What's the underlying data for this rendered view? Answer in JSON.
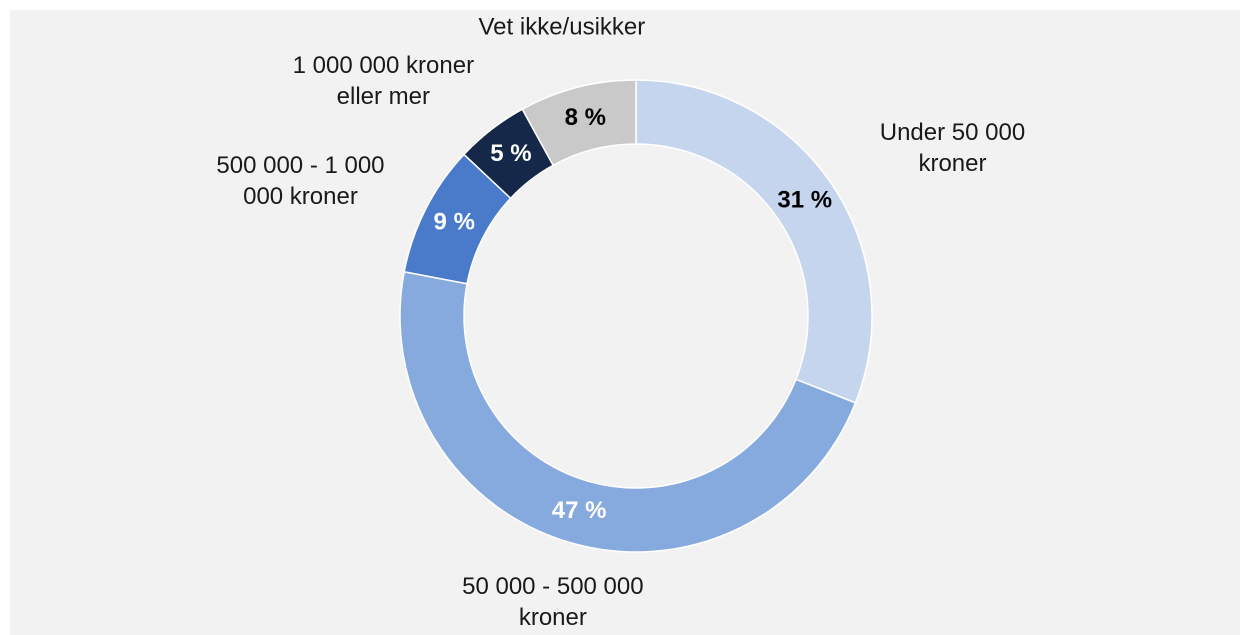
{
  "chart_data": {
    "type": "donut",
    "categories": [
      "Under 50 000 kroner",
      "50 000 - 500 000 kroner",
      "500 000 - 1 000 000 kroner",
      "1 000 000 kroner eller mer",
      "Vet ikke/usikker"
    ],
    "values": [
      31,
      47,
      9,
      5,
      8
    ],
    "value_labels": [
      "31 %",
      "47 %",
      "9 %",
      "5 %",
      "8 %"
    ],
    "colors": [
      "#c5d5ee",
      "#87aade",
      "#4a7bcb",
      "#15284a",
      "#c9c9c9"
    ],
    "label_colors": [
      "#000000",
      "#ffffff",
      "#ffffff",
      "#ffffff",
      "#000000"
    ]
  }
}
